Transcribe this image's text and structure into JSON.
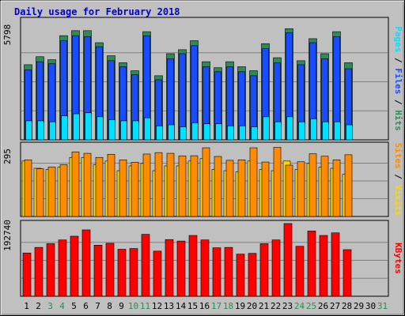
{
  "chart_data": [
    {
      "type": "bar",
      "title": "Daily usage for February 2018",
      "categories": [
        "1",
        "2",
        "3",
        "4",
        "5",
        "6",
        "7",
        "8",
        "9",
        "10",
        "11",
        "12",
        "13",
        "14",
        "15",
        "16",
        "17",
        "18",
        "19",
        "20",
        "21",
        "22",
        "23",
        "24",
        "25",
        "26",
        "27",
        "28",
        "29",
        "30",
        "31"
      ],
      "weekend_days": [
        "3",
        "4",
        "10",
        "11",
        "17",
        "18",
        "24",
        "25",
        "31"
      ],
      "ylabel_parts": [
        "Pages",
        "Files",
        "Hits"
      ],
      "ymax_label": "5798",
      "ylim": [
        0,
        5798
      ],
      "series": [
        {
          "name": "Hits",
          "color": "#2e8b57",
          "values": [
            3750,
            4150,
            4000,
            5200,
            5450,
            5450,
            4850,
            4200,
            3850,
            3450,
            5400,
            3200,
            4300,
            4500,
            4950,
            3900,
            3600,
            3900,
            3650,
            3450,
            4800,
            4100,
            5550,
            3950,
            5050,
            4300,
            5400,
            3850,
            0,
            0,
            0
          ]
        },
        {
          "name": "Files",
          "color": "#1a4cff",
          "values": [
            3500,
            3900,
            3800,
            4950,
            5200,
            5150,
            4650,
            3950,
            3650,
            3250,
            5200,
            3000,
            4050,
            4300,
            4700,
            3650,
            3400,
            3650,
            3400,
            3200,
            4550,
            3850,
            5350,
            3750,
            4850,
            4050,
            5150,
            3550,
            0,
            0,
            0
          ]
        },
        {
          "name": "Pages",
          "color": "#00e0ff",
          "values": [
            950,
            950,
            900,
            1200,
            1300,
            1350,
            1150,
            1000,
            950,
            950,
            1100,
            700,
            750,
            650,
            850,
            800,
            800,
            700,
            700,
            650,
            1150,
            900,
            1150,
            900,
            1050,
            900,
            900,
            750,
            0,
            0,
            0
          ]
        }
      ]
    },
    {
      "type": "bar",
      "ylabel_parts": [
        "Sites",
        "Visits"
      ],
      "ymax_label": "295",
      "ylim": [
        0,
        295
      ],
      "series": [
        {
          "name": "Visits",
          "color": "#ffd700",
          "values": [
            230,
            200,
            195,
            205,
            245,
            245,
            215,
            230,
            190,
            210,
            220,
            190,
            210,
            210,
            230,
            240,
            195,
            190,
            185,
            230,
            195,
            190,
            230,
            195,
            220,
            205,
            200,
            175,
            0,
            0,
            0
          ]
        },
        {
          "name": "Sites",
          "color": "#ff8c00",
          "values": [
            235,
            198,
            205,
            215,
            268,
            262,
            245,
            258,
            235,
            225,
            259,
            265,
            262,
            251,
            252,
            285,
            249,
            233,
            235,
            285,
            226,
            287,
            213,
            227,
            260,
            250,
            235,
            256,
            0,
            0,
            0
          ]
        }
      ]
    },
    {
      "type": "bar",
      "ylabel_parts": [
        "KBytes"
      ],
      "ymax_label": "192740",
      "ylim": [
        0,
        192740
      ],
      "series": [
        {
          "name": "KBytes",
          "color": "#ff0000",
          "values": [
            116000,
            131000,
            141000,
            151000,
            161000,
            178000,
            137000,
            142000,
            126000,
            128000,
            166000,
            121000,
            152000,
            148000,
            163000,
            151000,
            130000,
            131000,
            113000,
            115000,
            141000,
            151000,
            195000,
            134000,
            175000,
            163000,
            170000,
            125000,
            0,
            0,
            0
          ]
        }
      ]
    }
  ]
}
